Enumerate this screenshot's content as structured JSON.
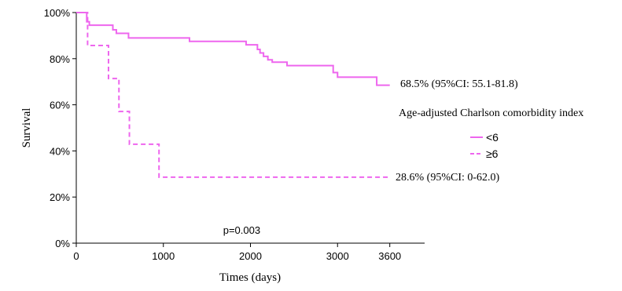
{
  "chart_data": {
    "type": "line",
    "subtype": "kaplan-meier step",
    "xlabel": "Times (days)",
    "ylabel": "Survival",
    "xlim": [
      0,
      4000
    ],
    "ylim": [
      0,
      100
    ],
    "x_ticks": [
      0,
      1000,
      2000,
      3000,
      3600
    ],
    "x_tick_labels": [
      "0",
      "1000",
      "2000",
      "3000",
      "3600"
    ],
    "y_ticks": [
      0,
      20,
      40,
      60,
      80,
      100
    ],
    "y_tick_labels": [
      "0%",
      "20%",
      "40%",
      "60%",
      "80%",
      "100%"
    ],
    "grid": false,
    "legend_title": "Age-adjusted Charlson comorbidity index",
    "legend_position": "right",
    "colors": {
      "series": "#ee66ee",
      "axis": "#000000"
    },
    "series": [
      {
        "name": "<6",
        "line_style": "solid",
        "end_label": "68.5% (95%CI: 55.1-81.8)",
        "x": [
          0,
          120,
          150,
          420,
          460,
          600,
          1300,
          1950,
          2080,
          2110,
          2150,
          2200,
          2250,
          2420,
          2950,
          3000,
          3450,
          3600
        ],
        "y": [
          100,
          96,
          94.5,
          92.5,
          91,
          89,
          87.5,
          86,
          84,
          82.5,
          81,
          79.5,
          78.5,
          77,
          74,
          72,
          68.5,
          68.5
        ]
      },
      {
        "name": "≥6",
        "line_style": "dashed",
        "end_label": "28.6% (95%CI: 0-62.0)",
        "x": [
          0,
          130,
          370,
          490,
          610,
          950,
          3600
        ],
        "y": [
          100,
          85.7,
          71.4,
          57.1,
          42.9,
          28.6,
          28.6
        ]
      }
    ],
    "annotations": [
      {
        "text": "p=0.003",
        "x": 1900,
        "y": 4
      }
    ]
  }
}
